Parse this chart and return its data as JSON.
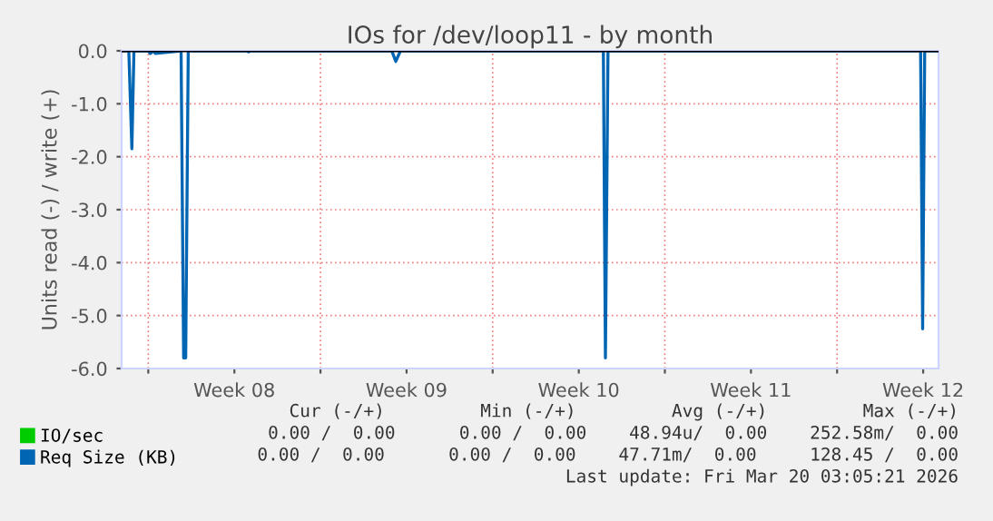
{
  "chart_data": {
    "type": "line",
    "title": "IOs for /dev/loop11 - by month",
    "ylabel": "Units read (-) / write (+)",
    "xlim": [
      "2026-02-14T22:00",
      "2026-03-20T03:00"
    ],
    "ylim": [
      -6,
      0
    ],
    "xticks": [
      {
        "value": "2026-02-16",
        "label": null
      },
      {
        "value": "2026-02-19T12:00",
        "label": "Week 08"
      },
      {
        "value": "2026-02-23",
        "label": null
      },
      {
        "value": "2026-02-26T12:00",
        "label": "Week 09"
      },
      {
        "value": "2026-03-02",
        "label": null
      },
      {
        "value": "2026-03-05T12:00",
        "label": "Week 10"
      },
      {
        "value": "2026-03-09",
        "label": null
      },
      {
        "value": "2026-03-12T12:00",
        "label": "Week 11"
      },
      {
        "value": "2026-03-16",
        "label": null
      },
      {
        "value": "2026-03-19T12:00",
        "label": "Week 12"
      }
    ],
    "yticks": [
      {
        "value": -6,
        "label": "-6.0"
      },
      {
        "value": -5,
        "label": "-5.0"
      },
      {
        "value": -4,
        "label": "-4.0"
      },
      {
        "value": -3,
        "label": "-3.0"
      },
      {
        "value": -2,
        "label": "-2.0"
      },
      {
        "value": -1,
        "label": "-1.0"
      },
      {
        "value": 0,
        "label": "0.0"
      }
    ],
    "grid": true,
    "legend": "bottom left",
    "marker": "none",
    "line_style": "solid",
    "series": [
      {
        "name": "IO/sec",
        "color": "#00cc00"
      },
      {
        "name": "Req Size (KB)",
        "color": "#0066b3",
        "x": [
          "2026-02-14T22:00",
          "2026-02-15T05:00",
          "2026-02-15T08:00",
          "2026-02-15T10:00",
          "2026-02-16T00:00",
          "2026-02-16T02:00",
          "2026-02-16T05:00",
          "2026-02-16T07:00",
          "2026-02-17T08:00",
          "2026-02-17T10:30",
          "2026-02-17T12:30",
          "2026-02-17T15:00",
          "2026-02-20T00:00",
          "2026-02-20T02:00",
          "2026-02-20T03:30",
          "2026-02-25T21:30",
          "2026-02-26T01:30",
          "2026-02-26T06:00",
          "2026-03-06T12:00",
          "2026-03-06T14:00",
          "2026-03-06T16:30",
          "2026-03-19T09:30",
          "2026-03-19T11:30",
          "2026-03-19T13:30",
          "2026-03-20T03:00"
        ],
        "values": [
          0,
          0,
          -1.85,
          0,
          0,
          -0.05,
          0,
          -0.05,
          0,
          -5.8,
          -5.8,
          0,
          0,
          -0.02,
          0,
          0,
          -0.2,
          0,
          0,
          -5.8,
          0,
          0,
          -5.25,
          0,
          0
        ]
      }
    ],
    "annotations": [
      "Cur (-/+)         Min (-/+)         Avg (-/+)         Max (-/+)",
      "0.00 /  0.00      0.00 /  0.00    48.94u/  0.00    252.58m/  0.00",
      "0.00 /  0.00      0.00 /  0.00    47.71m/  0.00     128.45 /  0.00",
      "Last update: Fri Mar 20 03:05:21 2026"
    ]
  }
}
